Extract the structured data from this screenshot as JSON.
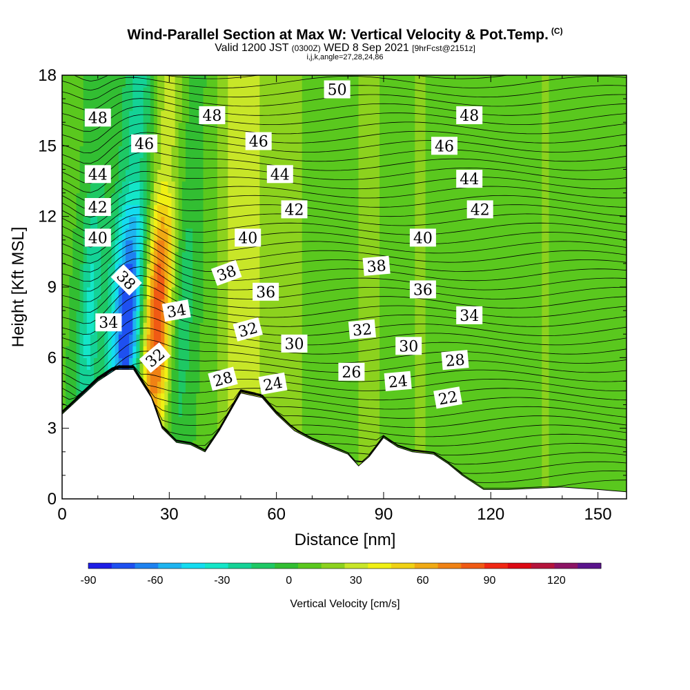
{
  "header": {
    "title": "Wind-Parallel Section at Max W: Vertical Velocity & Pot.Temp.",
    "copyright": "(C)",
    "valid_prefix": "Valid 1200 JST",
    "valid_utc": "(0300Z)",
    "valid_date": "WED 8 Sep 2021",
    "forecast": "[9hrFcst@2151z]",
    "indices": "i,j,k,angle=27,28,24,86"
  },
  "chart_data": {
    "type": "heatmap",
    "xlabel": "Distance [nm]",
    "ylabel": "Height [Kft MSL]",
    "xlim": [
      0,
      158
    ],
    "ylim": [
      0,
      18
    ],
    "xticks": [
      0,
      30,
      60,
      90,
      120,
      150
    ],
    "yticks": [
      0,
      3,
      6,
      9,
      12,
      15,
      18
    ],
    "colorbar": {
      "label": "Vertical Velocity [cm/s]",
      "tick_labels": [
        -90,
        -60,
        -30,
        0,
        30,
        60,
        90,
        120
      ],
      "range": [
        -90,
        140
      ],
      "colors": [
        "#1e1ee6",
        "#1e50f0",
        "#1e82f0",
        "#1eb4f0",
        "#14dcf0",
        "#14e6c8",
        "#14d296",
        "#1ec864",
        "#32be32",
        "#5ac81e",
        "#8cd21e",
        "#c8e628",
        "#f0f014",
        "#f0d214",
        "#f0aa14",
        "#f08214",
        "#f05a14",
        "#f02814",
        "#dc0a14",
        "#b4143c",
        "#8c1464",
        "#5a148c"
      ]
    },
    "ridges": [
      {
        "x": 19,
        "w": 5,
        "value": -90
      },
      {
        "x": 27,
        "w": 5,
        "value": 90
      },
      {
        "x": 33,
        "w": 4,
        "value": -30
      },
      {
        "x": 8,
        "w": 3,
        "value": -35
      },
      {
        "x": 50,
        "w": 6,
        "value": 30
      },
      {
        "x": 62,
        "w": 6,
        "value": 18
      },
      {
        "x": 86,
        "w": 4,
        "value": 15
      },
      {
        "x": 100,
        "w": 6,
        "value": 10
      },
      {
        "x": 135,
        "w": 5,
        "value": 10
      }
    ],
    "terrain_kft": [
      [
        0,
        3.6
      ],
      [
        5,
        4.3
      ],
      [
        10,
        5.0
      ],
      [
        15,
        5.5
      ],
      [
        20,
        5.5
      ],
      [
        25,
        4.3
      ],
      [
        28,
        3.0
      ],
      [
        32,
        2.4
      ],
      [
        36,
        2.3
      ],
      [
        40,
        2.0
      ],
      [
        44,
        2.9
      ],
      [
        50,
        4.5
      ],
      [
        56,
        4.3
      ],
      [
        60,
        3.6
      ],
      [
        65,
        2.9
      ],
      [
        70,
        2.5
      ],
      [
        75,
        2.2
      ],
      [
        80,
        1.9
      ],
      [
        83,
        1.4
      ],
      [
        86,
        1.8
      ],
      [
        90,
        2.6
      ],
      [
        94,
        2.2
      ],
      [
        98,
        2.0
      ],
      [
        104,
        1.9
      ],
      [
        108,
        1.5
      ],
      [
        112,
        1.0
      ],
      [
        118,
        0.4
      ],
      [
        125,
        0.4
      ],
      [
        140,
        0.5
      ],
      [
        150,
        0.4
      ],
      [
        158,
        0.3
      ]
    ],
    "theta_labels": [
      {
        "text": "50",
        "x": 77,
        "y": 17.4,
        "rot": 0
      },
      {
        "text": "48",
        "x": 10,
        "y": 16.2,
        "rot": 0
      },
      {
        "text": "48",
        "x": 42,
        "y": 16.3,
        "rot": 0
      },
      {
        "text": "48",
        "x": 114,
        "y": 16.3,
        "rot": 0
      },
      {
        "text": "46",
        "x": 23,
        "y": 15.1,
        "rot": 0
      },
      {
        "text": "46",
        "x": 55,
        "y": 15.2,
        "rot": 0
      },
      {
        "text": "46",
        "x": 107,
        "y": 15.0,
        "rot": 0
      },
      {
        "text": "44",
        "x": 10,
        "y": 13.8,
        "rot": 0
      },
      {
        "text": "44",
        "x": 61,
        "y": 13.8,
        "rot": 0
      },
      {
        "text": "44",
        "x": 114,
        "y": 13.6,
        "rot": 0
      },
      {
        "text": "42",
        "x": 10,
        "y": 12.4,
        "rot": 0
      },
      {
        "text": "42",
        "x": 65,
        "y": 12.3,
        "rot": 0
      },
      {
        "text": "42",
        "x": 117,
        "y": 12.3,
        "rot": 0
      },
      {
        "text": "40",
        "x": 10,
        "y": 11.1,
        "rot": 0
      },
      {
        "text": "40",
        "x": 52,
        "y": 11.1,
        "rot": 0
      },
      {
        "text": "40",
        "x": 101,
        "y": 11.1,
        "rot": 0
      },
      {
        "text": "38",
        "x": 18,
        "y": 9.3,
        "rot": 45
      },
      {
        "text": "38",
        "x": 46,
        "y": 9.6,
        "rot": -20
      },
      {
        "text": "38",
        "x": 88,
        "y": 9.9,
        "rot": -5
      },
      {
        "text": "36",
        "x": 57,
        "y": 8.8,
        "rot": 0
      },
      {
        "text": "36",
        "x": 101,
        "y": 8.9,
        "rot": 0
      },
      {
        "text": "34",
        "x": 13,
        "y": 7.5,
        "rot": 0
      },
      {
        "text": "34",
        "x": 32,
        "y": 8.0,
        "rot": -10
      },
      {
        "text": "34",
        "x": 114,
        "y": 7.8,
        "rot": 0
      },
      {
        "text": "32",
        "x": 26,
        "y": 6.0,
        "rot": -40
      },
      {
        "text": "32",
        "x": 52,
        "y": 7.2,
        "rot": -15
      },
      {
        "text": "32",
        "x": 84,
        "y": 7.2,
        "rot": -5
      },
      {
        "text": "30",
        "x": 65,
        "y": 6.6,
        "rot": 0
      },
      {
        "text": "30",
        "x": 97,
        "y": 6.5,
        "rot": 0
      },
      {
        "text": "28",
        "x": 45,
        "y": 5.1,
        "rot": -15
      },
      {
        "text": "28",
        "x": 110,
        "y": 5.9,
        "rot": -5
      },
      {
        "text": "26",
        "x": 81,
        "y": 5.4,
        "rot": 0
      },
      {
        "text": "24",
        "x": 59,
        "y": 4.9,
        "rot": -10
      },
      {
        "text": "24",
        "x": 94,
        "y": 5.0,
        "rot": -5
      },
      {
        "text": "22",
        "x": 108,
        "y": 4.3,
        "rot": -10
      }
    ]
  }
}
